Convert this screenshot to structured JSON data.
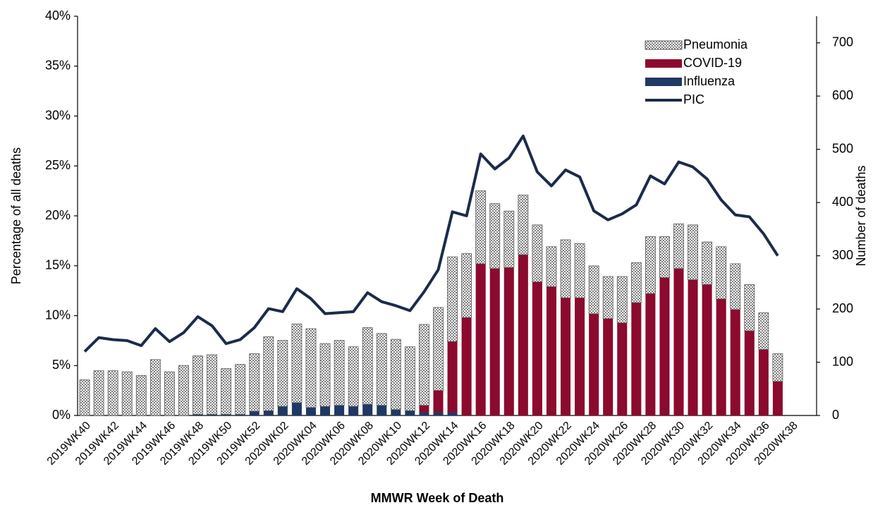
{
  "chart_data": {
    "type": "bar",
    "x_label": "MMWR Week of Death",
    "y_label": "Percentage of all deaths",
    "y2_label": "Number of deaths",
    "categories": [
      "2019WK40",
      null,
      "2019WK42",
      null,
      "2019WK44",
      null,
      "2019WK46",
      null,
      "2019WK48",
      null,
      "2019WK50",
      null,
      "2019WK52",
      null,
      "2020WK02",
      null,
      "2020WK04",
      null,
      "2020WK06",
      null,
      "2020WK08",
      null,
      "2020WK10",
      null,
      "2020WK12",
      null,
      "2020WK14",
      null,
      "2020WK16",
      null,
      "2020WK18",
      null,
      "2020WK20",
      null,
      "2020WK22",
      null,
      "2020WK24",
      null,
      "2020WK26",
      null,
      "2020WK28",
      null,
      "2020WK30",
      null,
      "2020WK32",
      null,
      "2020WK34",
      null,
      "2020WK36",
      null,
      "2020WK38"
    ],
    "ylim": [
      0,
      40
    ],
    "yticks": [
      {
        "value": 0,
        "label": "0%"
      },
      {
        "value": 5,
        "label": "5%"
      },
      {
        "value": 10,
        "label": "10%"
      },
      {
        "value": 15,
        "label": "15%"
      },
      {
        "value": 20,
        "label": "20%"
      },
      {
        "value": 25,
        "label": "25%"
      },
      {
        "value": 30,
        "label": "30%"
      },
      {
        "value": 35,
        "label": "35%"
      },
      {
        "value": 40,
        "label": "40%"
      }
    ],
    "y2lim": [
      0,
      750
    ],
    "y2ticks": [
      0,
      100,
      200,
      300,
      400,
      500,
      600,
      700
    ],
    "legend": "top-right",
    "series": [
      {
        "name": "Pneumonia",
        "type": "bar",
        "axis": "y2",
        "color": "#7f7f7f",
        "values": [
          67,
          84,
          84,
          82,
          75,
          105,
          82,
          94,
          110,
          112,
          86,
          94,
          108,
          139,
          124,
          148,
          148,
          118,
          122,
          112,
          144,
          135,
          132,
          120,
          152,
          156,
          159,
          120,
          137,
          122,
          106,
          112,
          107,
          75,
          109,
          102,
          90,
          79,
          87,
          75,
          107,
          77,
          84,
          103,
          80,
          98,
          86,
          87,
          69,
          52,
          null
        ]
      },
      {
        "name": "COVID-19",
        "type": "bar",
        "axis": "y2",
        "color": "#8b0a2e",
        "values": [
          0,
          0,
          0,
          0,
          0,
          0,
          0,
          0,
          0,
          0,
          0,
          0,
          0,
          0,
          0,
          0,
          0,
          0,
          0,
          0,
          0,
          0,
          0,
          0,
          13,
          41,
          133,
          184,
          285,
          276,
          278,
          302,
          251,
          242,
          221,
          221,
          191,
          182,
          174,
          212,
          229,
          259,
          276,
          255,
          246,
          219,
          199,
          159,
          124,
          64,
          null
        ]
      },
      {
        "name": "Influenza",
        "type": "bar",
        "axis": "y2",
        "color": "#1f3864",
        "values": [
          0,
          0,
          0,
          0,
          0,
          0,
          0,
          0,
          2,
          2,
          2,
          2,
          8,
          9,
          17,
          24,
          15,
          17,
          19,
          17,
          21,
          19,
          11,
          9,
          6,
          6,
          6,
          0,
          0,
          0,
          0,
          0,
          0,
          0,
          0,
          0,
          0,
          0,
          0,
          0,
          0,
          0,
          0,
          0,
          0,
          0,
          0,
          0,
          0,
          0,
          null
        ]
      },
      {
        "name": "PIC",
        "type": "line",
        "axis": "y",
        "color": "#1c2b4a",
        "values": [
          6.4,
          7.8,
          7.6,
          7.5,
          7.0,
          8.7,
          7.4,
          8.3,
          9.9,
          9.0,
          7.2,
          7.6,
          8.8,
          10.7,
          10.4,
          12.7,
          11.7,
          10.2,
          10.3,
          10.4,
          12.3,
          11.4,
          11.0,
          10.5,
          12.4,
          14.6,
          20.4,
          20.0,
          26.2,
          24.7,
          25.8,
          28.0,
          24.4,
          23.0,
          24.6,
          23.9,
          20.5,
          19.6,
          20.2,
          21.1,
          24.0,
          23.2,
          25.4,
          24.9,
          23.7,
          21.6,
          20.1,
          19.9,
          18.2,
          16.0,
          null
        ]
      }
    ]
  }
}
